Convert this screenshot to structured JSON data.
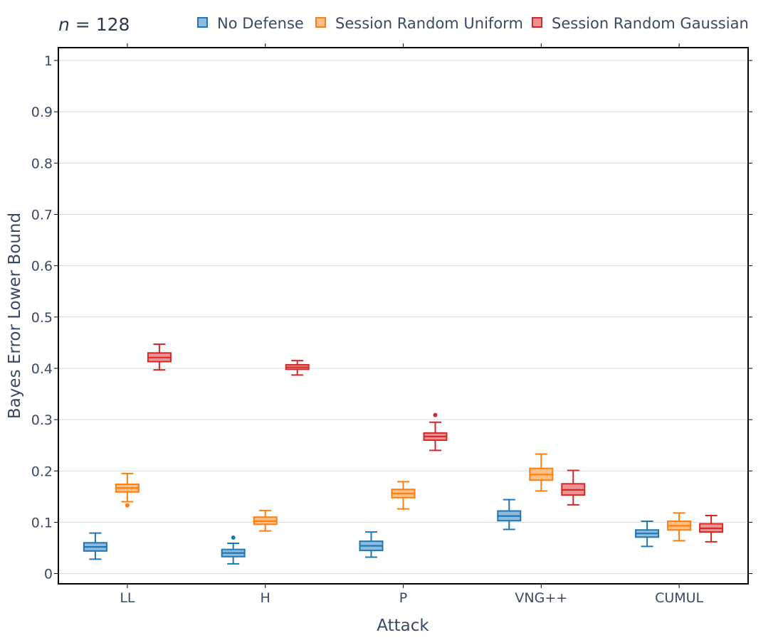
{
  "chart_data": {
    "type": "box",
    "annotation": {
      "label_italic": "n",
      "label_rest": " = 128"
    },
    "xlabel": "Attack",
    "ylabel": "Bayes Error Lower Bound",
    "ylim": [
      -0.02,
      1.025
    ],
    "yticks": [
      0,
      0.1,
      0.2,
      0.3,
      0.4,
      0.5,
      0.6,
      0.7,
      0.8,
      0.9,
      1
    ],
    "ytick_labels": [
      "0",
      "0.1",
      "0.2",
      "0.3",
      "0.4",
      "0.5",
      "0.6",
      "0.7",
      "0.8",
      "0.9",
      "1"
    ],
    "grid": true,
    "legend_position": "top-right",
    "categories": [
      "LL",
      "H",
      "P",
      "VNG++",
      "CUMUL"
    ],
    "series": [
      {
        "name": "No Defense",
        "color": "#1f77b4",
        "fill": "#8fbadb",
        "boxes": [
          {
            "min": 0.028,
            "q1": 0.044,
            "median": 0.052,
            "mean": 0.051,
            "q3": 0.06,
            "max": 0.079,
            "outliers": []
          },
          {
            "min": 0.019,
            "q1": 0.033,
            "median": 0.04,
            "mean": 0.041,
            "q3": 0.047,
            "max": 0.059,
            "outliers": [
              0.07
            ]
          },
          {
            "min": 0.032,
            "q1": 0.045,
            "median": 0.054,
            "mean": 0.055,
            "q3": 0.063,
            "max": 0.081,
            "outliers": []
          },
          {
            "min": 0.086,
            "q1": 0.103,
            "median": 0.112,
            "mean": 0.113,
            "q3": 0.122,
            "max": 0.144,
            "outliers": []
          },
          {
            "min": 0.053,
            "q1": 0.071,
            "median": 0.078,
            "mean": 0.079,
            "q3": 0.085,
            "max": 0.102,
            "outliers": []
          }
        ]
      },
      {
        "name": "Session Random Uniform",
        "color": "#ff7f0e",
        "fill": "#ffbf86",
        "boxes": [
          {
            "min": 0.14,
            "q1": 0.159,
            "median": 0.167,
            "mean": 0.166,
            "q3": 0.174,
            "max": 0.195,
            "outliers": [
              0.133
            ]
          },
          {
            "min": 0.083,
            "q1": 0.096,
            "median": 0.102,
            "mean": 0.103,
            "q3": 0.11,
            "max": 0.123,
            "outliers": []
          },
          {
            "min": 0.126,
            "q1": 0.148,
            "median": 0.156,
            "mean": 0.157,
            "q3": 0.164,
            "max": 0.179,
            "outliers": []
          },
          {
            "min": 0.161,
            "q1": 0.182,
            "median": 0.193,
            "mean": 0.193,
            "q3": 0.205,
            "max": 0.233,
            "outliers": []
          },
          {
            "min": 0.064,
            "q1": 0.085,
            "median": 0.093,
            "mean": 0.094,
            "q3": 0.102,
            "max": 0.118,
            "outliers": []
          }
        ]
      },
      {
        "name": "Session Random Gaussian",
        "color": "#d62728",
        "fill": "#eb9394",
        "boxes": [
          {
            "min": 0.397,
            "q1": 0.413,
            "median": 0.421,
            "mean": 0.421,
            "q3": 0.43,
            "max": 0.447,
            "outliers": []
          },
          {
            "min": 0.387,
            "q1": 0.398,
            "median": 0.402,
            "mean": 0.402,
            "q3": 0.407,
            "max": 0.415,
            "outliers": []
          },
          {
            "min": 0.24,
            "q1": 0.26,
            "median": 0.267,
            "mean": 0.268,
            "q3": 0.274,
            "max": 0.295,
            "outliers": [
              0.309
            ]
          },
          {
            "min": 0.134,
            "q1": 0.153,
            "median": 0.163,
            "mean": 0.164,
            "q3": 0.175,
            "max": 0.201,
            "outliers": []
          },
          {
            "min": 0.062,
            "q1": 0.081,
            "median": 0.088,
            "mean": 0.089,
            "q3": 0.097,
            "max": 0.113,
            "outliers": []
          }
        ]
      }
    ]
  }
}
